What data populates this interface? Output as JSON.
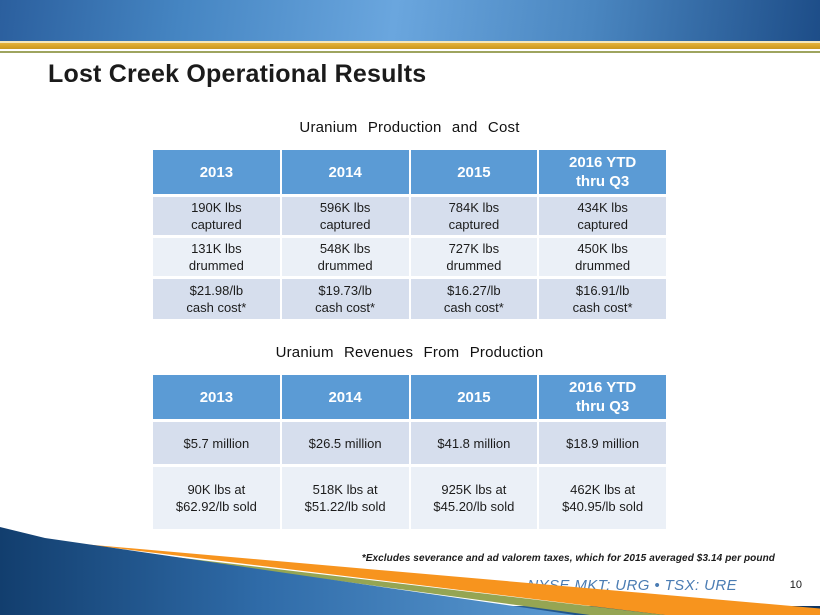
{
  "slide": {
    "title": "Lost Creek Operational Results",
    "footnote": "*Excludes severance and ad valorem taxes, which for 2015 averaged $3.14 per pound",
    "ticker": "NYSE MKT: URG • TSX: URE",
    "page_number": "10"
  },
  "colors": {
    "header_blue": "#5b9bd5",
    "row_dark": "#d6deed",
    "row_light": "#ebf0f7",
    "gold_stripe": "#d6a226",
    "olive_accent": "#95a553",
    "orange_accent": "#f7941e",
    "navy": "#123a66",
    "ticker_blue": "#4a7cb3"
  },
  "tables": [
    {
      "caption": "Uranium Production and Cost",
      "headers": [
        "2013",
        "2014",
        "2015",
        "2016 YTD\nthru Q3"
      ],
      "rows": [
        [
          "190K lbs\ncaptured",
          "596K lbs\ncaptured",
          "784K lbs\ncaptured",
          "434K lbs\ncaptured"
        ],
        [
          "131K lbs\ndrummed",
          "548K lbs\ndrummed",
          "727K lbs\ndrummed",
          "450K lbs\ndrummed"
        ],
        [
          "$21.98/lb\ncash cost*",
          "$19.73/lb\ncash cost*",
          "$16.27/lb\ncash cost*",
          "$16.91/lb\ncash cost*"
        ]
      ]
    },
    {
      "caption": "Uranium Revenues From Production",
      "headers": [
        "2013",
        "2014",
        "2015",
        "2016 YTD\nthru Q3"
      ],
      "rows": [
        [
          "$5.7 million",
          "$26.5 million",
          "$41.8 million",
          "$18.9 million"
        ],
        [
          "90K lbs at\n$62.92/lb sold",
          "518K lbs at\n$51.22/lb sold",
          "925K lbs at\n$45.20/lb sold",
          "462K lbs at\n$40.95/lb sold"
        ]
      ]
    }
  ]
}
